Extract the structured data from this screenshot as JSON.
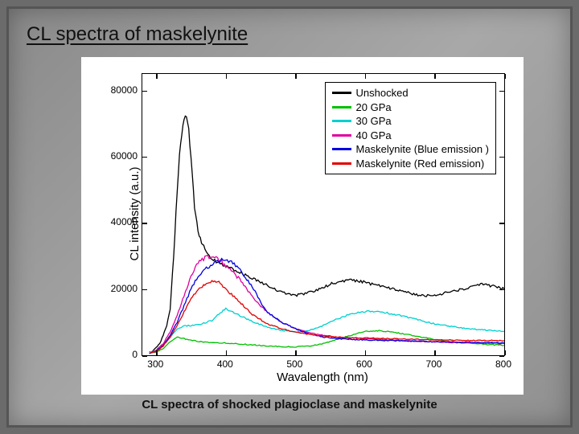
{
  "slide": {
    "title": "CL spectra of maskelynite",
    "caption": "CL spectra of  shocked plagioclase and maskelynite"
  },
  "chart": {
    "type": "line",
    "xlabel": "Wavalength (nm)",
    "ylabel": "CL intensity (a.u.)",
    "xlim": [
      280,
      800
    ],
    "ylim": [
      0,
      85000
    ],
    "xticks": [
      300,
      400,
      500,
      600,
      700,
      800
    ],
    "yticks": [
      0,
      20000,
      40000,
      60000,
      80000
    ],
    "background_color": "#ffffff",
    "axis_color": "#000000",
    "tick_fontsize": 12,
    "label_fontsize": 15,
    "line_width": 1.3,
    "legend": {
      "position": "upper-right",
      "border_color": "#000000",
      "fontsize": 13,
      "items": [
        {
          "label": "Unshocked",
          "color": "#000000"
        },
        {
          "label": "20 GPa",
          "color": "#00c000"
        },
        {
          "label": "30 GPa",
          "color": "#00d0d0"
        },
        {
          "label": "40 GPa",
          "color": "#e000a0"
        },
        {
          "label": "Maskelynite (Blue emission )",
          "color": "#0000e0"
        },
        {
          "label": "Maskelynite (Red emission)",
          "color": "#e00000"
        }
      ]
    },
    "series": [
      {
        "name": "Unshocked",
        "color": "#000000",
        "x": [
          290,
          295,
          300,
          305,
          310,
          315,
          320,
          325,
          330,
          335,
          340,
          345,
          350,
          355,
          360,
          365,
          370,
          380,
          390,
          400,
          410,
          420,
          430,
          440,
          450,
          460,
          470,
          480,
          490,
          500,
          510,
          520,
          530,
          540,
          550,
          560,
          570,
          580,
          590,
          600,
          610,
          620,
          630,
          640,
          650,
          660,
          670,
          680,
          690,
          700,
          710,
          720,
          730,
          740,
          750,
          760,
          770,
          780,
          790,
          800
        ],
        "y": [
          1000,
          1200,
          2500,
          3500,
          6000,
          9000,
          14000,
          30000,
          50000,
          65000,
          72000,
          71000,
          60000,
          44000,
          38000,
          34000,
          32000,
          29000,
          28000,
          27000,
          26000,
          25000,
          24000,
          23000,
          22000,
          21000,
          20000,
          19000,
          18500,
          18000,
          18500,
          19000,
          19500,
          20500,
          21500,
          22000,
          22500,
          22800,
          22500,
          22000,
          21500,
          21000,
          20500,
          20000,
          19500,
          19000,
          18500,
          18000,
          18000,
          18000,
          18500,
          19000,
          19500,
          20000,
          20500,
          21000,
          21500,
          21000,
          20500,
          20000
        ]
      },
      {
        "name": "20 GPa",
        "color": "#00c000",
        "x": [
          290,
          300,
          310,
          320,
          330,
          340,
          350,
          360,
          370,
          380,
          390,
          400,
          420,
          440,
          460,
          480,
          500,
          520,
          540,
          560,
          580,
          600,
          620,
          640,
          660,
          680,
          700,
          720,
          740,
          760,
          780,
          800
        ],
        "y": [
          600,
          1000,
          2000,
          4000,
          5500,
          5000,
          4500,
          4200,
          4000,
          3800,
          3800,
          3700,
          3400,
          3100,
          2800,
          2600,
          2500,
          2800,
          3500,
          4800,
          6000,
          7200,
          7400,
          7000,
          6300,
          5500,
          4800,
          4200,
          3800,
          3500,
          3200,
          3000
        ]
      },
      {
        "name": "30 GPa",
        "color": "#00d0d0",
        "x": [
          290,
          300,
          310,
          320,
          330,
          340,
          350,
          360,
          370,
          380,
          390,
          400,
          420,
          440,
          460,
          480,
          500,
          520,
          540,
          560,
          580,
          600,
          620,
          640,
          660,
          680,
          700,
          720,
          740,
          760,
          780,
          800
        ],
        "y": [
          800,
          1500,
          3000,
          5500,
          8000,
          8800,
          9000,
          9200,
          9800,
          10500,
          12500,
          14000,
          12000,
          10000,
          8500,
          7500,
          7000,
          7500,
          9000,
          11000,
          12500,
          13200,
          13200,
          12500,
          11500,
          10500,
          9500,
          8800,
          8200,
          7800,
          7500,
          7200
        ]
      },
      {
        "name": "40 GPa",
        "color": "#e000a0",
        "x": [
          290,
          300,
          310,
          320,
          330,
          340,
          350,
          360,
          370,
          380,
          390,
          400,
          410,
          420,
          430,
          440,
          460,
          480,
          500,
          520,
          540,
          560,
          580,
          600,
          620,
          640,
          660,
          680,
          700,
          720,
          740,
          760,
          780,
          800
        ],
        "y": [
          700,
          1500,
          3500,
          7000,
          12000,
          18000,
          24000,
          28000,
          29500,
          30000,
          29000,
          27000,
          25000,
          23000,
          20000,
          17000,
          13000,
          10000,
          8000,
          6800,
          6000,
          5500,
          5200,
          5000,
          4800,
          4600,
          4400,
          4200,
          4000,
          3900,
          3800,
          3700,
          3600,
          3500
        ]
      },
      {
        "name": "Maskelynite-Blue",
        "color": "#0000e0",
        "x": [
          290,
          300,
          310,
          320,
          330,
          340,
          350,
          360,
          370,
          380,
          390,
          400,
          410,
          420,
          430,
          440,
          450,
          460,
          480,
          500,
          520,
          540,
          560,
          580,
          600,
          620,
          640,
          660,
          680,
          700,
          720,
          740,
          760,
          780,
          800
        ],
        "y": [
          600,
          1200,
          3000,
          6000,
          10000,
          15000,
          20000,
          24000,
          26000,
          27500,
          28500,
          29000,
          28000,
          26000,
          23000,
          20000,
          16000,
          13000,
          10000,
          8000,
          6500,
          5500,
          5000,
          4800,
          4600,
          4500,
          4400,
          4300,
          4200,
          4100,
          4000,
          3900,
          3850,
          3800,
          3700
        ]
      },
      {
        "name": "Maskelynite-Red",
        "color": "#e00000",
        "x": [
          290,
          300,
          310,
          320,
          330,
          340,
          350,
          360,
          370,
          380,
          390,
          400,
          410,
          420,
          430,
          440,
          460,
          480,
          500,
          520,
          540,
          560,
          580,
          600,
          620,
          640,
          660,
          680,
          700,
          720,
          740,
          760,
          780,
          800
        ],
        "y": [
          600,
          1200,
          2800,
          5500,
          9000,
          13000,
          17000,
          20000,
          21500,
          22500,
          22000,
          20000,
          18000,
          16000,
          14000,
          12000,
          9500,
          8000,
          7000,
          6300,
          5800,
          5500,
          5300,
          5200,
          5100,
          5000,
          4900,
          4800,
          4700,
          4600,
          4550,
          4500,
          4450,
          4400
        ]
      }
    ]
  }
}
